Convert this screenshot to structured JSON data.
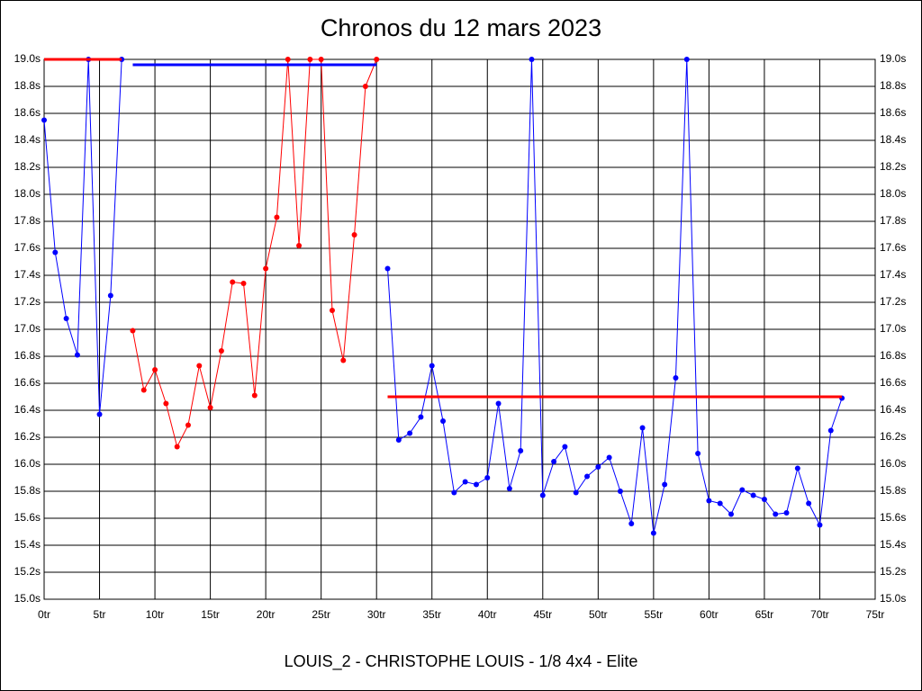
{
  "chart_data": {
    "type": "line",
    "title": "Chronos du 12 mars 2023",
    "xlabel": "LOUIS_2 - CHRISTOPHE LOUIS - 1/8 4x4 - Elite",
    "xlim": [
      0,
      75
    ],
    "ylim": [
      15.0,
      19.0
    ],
    "grid": true,
    "xticks": [
      {
        "value": 0,
        "label": "0tr"
      },
      {
        "value": 5,
        "label": "5tr"
      },
      {
        "value": 10,
        "label": "10tr"
      },
      {
        "value": 15,
        "label": "15tr"
      },
      {
        "value": 20,
        "label": "20tr"
      },
      {
        "value": 25,
        "label": "25tr"
      },
      {
        "value": 30,
        "label": "30tr"
      },
      {
        "value": 35,
        "label": "35tr"
      },
      {
        "value": 40,
        "label": "40tr"
      },
      {
        "value": 45,
        "label": "45tr"
      },
      {
        "value": 50,
        "label": "50tr"
      },
      {
        "value": 55,
        "label": "55tr"
      },
      {
        "value": 60,
        "label": "60tr"
      },
      {
        "value": 65,
        "label": "65tr"
      },
      {
        "value": 70,
        "label": "70tr"
      },
      {
        "value": 75,
        "label": "75tr"
      }
    ],
    "yticks": [
      {
        "value": 15.0,
        "label": "15.0s"
      },
      {
        "value": 15.2,
        "label": "15.2s"
      },
      {
        "value": 15.4,
        "label": "15.4s"
      },
      {
        "value": 15.6,
        "label": "15.6s"
      },
      {
        "value": 15.8,
        "label": "15.8s"
      },
      {
        "value": 16.0,
        "label": "16.0s"
      },
      {
        "value": 16.2,
        "label": "16.2s"
      },
      {
        "value": 16.4,
        "label": "16.4s"
      },
      {
        "value": 16.6,
        "label": "16.6s"
      },
      {
        "value": 16.8,
        "label": "16.8s"
      },
      {
        "value": 17.0,
        "label": "17.0s"
      },
      {
        "value": 17.2,
        "label": "17.2s"
      },
      {
        "value": 17.4,
        "label": "17.4s"
      },
      {
        "value": 17.6,
        "label": "17.6s"
      },
      {
        "value": 17.8,
        "label": "17.8s"
      },
      {
        "value": 18.0,
        "label": "18.0s"
      },
      {
        "value": 18.2,
        "label": "18.2s"
      },
      {
        "value": 18.4,
        "label": "18.4s"
      },
      {
        "value": 18.6,
        "label": "18.6s"
      },
      {
        "value": 18.8,
        "label": "18.8s"
      },
      {
        "value": 19.0,
        "label": "19.0s"
      }
    ],
    "series": [
      {
        "color": "#0000ff",
        "x": [
          0,
          1,
          2,
          3,
          4,
          5,
          6,
          7
        ],
        "values": [
          18.55,
          17.57,
          17.08,
          16.81,
          19.0,
          16.37,
          17.25,
          19.0
        ]
      },
      {
        "color": "#ff0000",
        "x": [
          8,
          9,
          10,
          11,
          12,
          13,
          14,
          15,
          16,
          17,
          18,
          19,
          20,
          21,
          22,
          23,
          24,
          25,
          26,
          27,
          28,
          29,
          30
        ],
        "values": [
          16.99,
          16.55,
          16.7,
          16.45,
          16.13,
          16.29,
          16.73,
          16.42,
          16.84,
          17.35,
          17.34,
          16.51,
          17.45,
          17.83,
          19.0,
          17.62,
          19.0,
          19.0,
          17.14,
          16.77,
          17.7,
          18.8,
          19.0
        ]
      },
      {
        "color": "#0000ff",
        "x": [
          31,
          32,
          33,
          34,
          35,
          36,
          37,
          38,
          39,
          40,
          41,
          42,
          43,
          44,
          45,
          46,
          47,
          48,
          49,
          50,
          51,
          52,
          53,
          54,
          55,
          56,
          57,
          58,
          59,
          60,
          61,
          62,
          63,
          64,
          65,
          66,
          67,
          68,
          69,
          70,
          71,
          72
        ],
        "values": [
          17.45,
          16.18,
          16.23,
          16.35,
          16.73,
          16.32,
          15.79,
          15.87,
          15.85,
          15.9,
          16.45,
          15.82,
          16.1,
          19.0,
          15.77,
          16.02,
          16.13,
          15.79,
          15.91,
          15.98,
          16.05,
          15.8,
          15.56,
          16.27,
          15.49,
          15.85,
          16.64,
          19.0,
          16.08,
          15.73,
          15.71,
          15.63,
          15.81,
          15.77,
          15.74,
          15.63,
          15.64,
          15.97,
          15.71,
          15.55,
          16.25,
          16.49
        ]
      }
    ],
    "reference_lines": [
      {
        "color": "#ff0000",
        "x": [
          0,
          7
        ],
        "value": 19.0
      },
      {
        "color": "#0000ff",
        "x": [
          8,
          30
        ],
        "value": 18.96
      },
      {
        "color": "#ff0000",
        "x": [
          31,
          72
        ],
        "value": 16.5
      }
    ]
  }
}
